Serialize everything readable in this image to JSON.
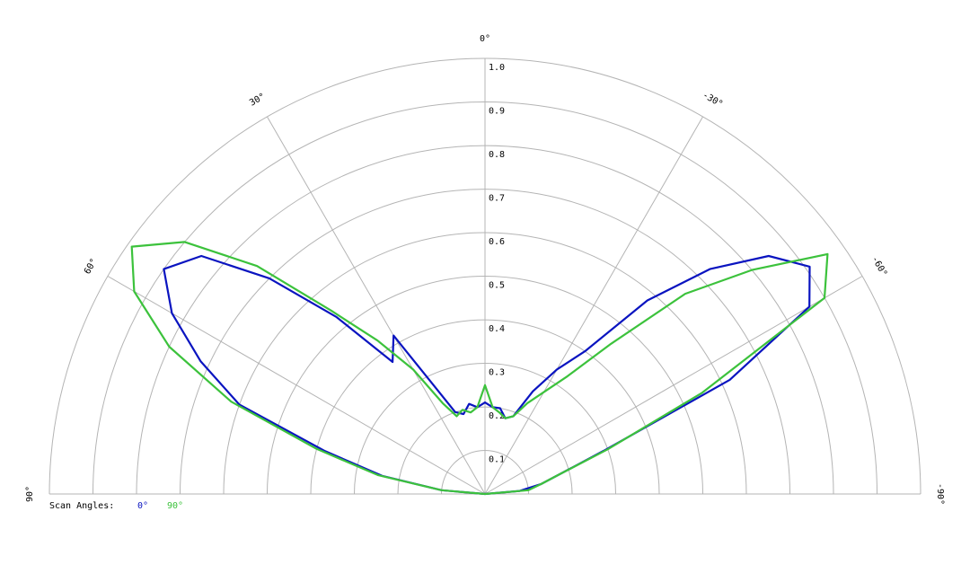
{
  "chart_data": {
    "type": "polar",
    "legend_title": "Scan Angles:",
    "theta": [
      90,
      85,
      80,
      75,
      70,
      65,
      60,
      55,
      50,
      45,
      40,
      35,
      30,
      25,
      20,
      15,
      10,
      5,
      0,
      -5,
      -10,
      -15,
      -20,
      -25,
      -30,
      -35,
      -40,
      -45,
      -50,
      -55,
      -60,
      -65,
      -70,
      -75,
      -80,
      -85,
      -90
    ],
    "series": [
      {
        "name": "0°",
        "color": "#0a14c0",
        "values": [
          0.0,
          0.1,
          0.24,
          0.38,
          0.6,
          0.72,
          0.83,
          0.9,
          0.85,
          0.7,
          0.53,
          0.37,
          0.42,
          0.27,
          0.2,
          0.19,
          0.21,
          0.2,
          0.21,
          0.2,
          0.2,
          0.18,
          0.19,
          0.26,
          0.33,
          0.4,
          0.58,
          0.73,
          0.85,
          0.91,
          0.86,
          0.62,
          0.29,
          0.18,
          0.13,
          0.08,
          0.0
        ]
      },
      {
        "name": "90°",
        "color": "#3cc23c",
        "values": [
          0.0,
          0.1,
          0.25,
          0.4,
          0.62,
          0.8,
          0.93,
          0.99,
          0.9,
          0.74,
          0.55,
          0.43,
          0.33,
          0.23,
          0.19,
          0.2,
          0.19,
          0.2,
          0.25,
          0.2,
          0.19,
          0.18,
          0.19,
          0.23,
          0.27,
          0.33,
          0.45,
          0.65,
          0.8,
          0.96,
          0.9,
          0.55,
          0.3,
          0.18,
          0.13,
          0.1,
          0.0
        ]
      }
    ],
    "rlim": [
      0,
      1
    ],
    "rticks": [
      0.1,
      0.2,
      0.3,
      0.4,
      0.5,
      0.6,
      0.7,
      0.8,
      0.9,
      {
        "value": 1,
        "label": "1.0"
      }
    ],
    "thetaticks": [
      {
        "value": 90,
        "label": "90°"
      },
      {
        "value": 60,
        "label": "60°"
      },
      {
        "value": 30,
        "label": "30°"
      },
      {
        "value": 0,
        "label": "0°"
      },
      {
        "value": -30,
        "label": "-30°"
      },
      {
        "value": -60,
        "label": "-60°"
      },
      {
        "value": -90,
        "label": "-90°"
      }
    ],
    "grid": true
  }
}
